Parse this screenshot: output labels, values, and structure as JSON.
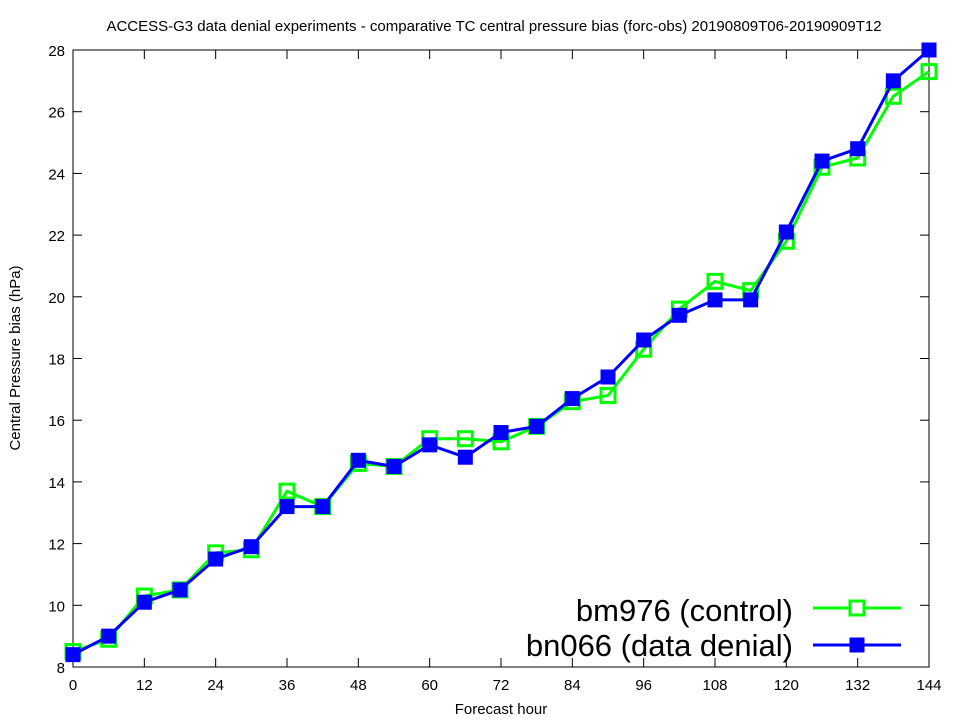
{
  "chart_data": {
    "type": "line",
    "title": "ACCESS-G3 data denial experiments - comparative TC central pressure bias (forc-obs) 20190809T06-20190909T12",
    "xlabel": "Forecast hour",
    "ylabel": "Central Pressure bias (hPa)",
    "xlim": [
      0,
      144
    ],
    "ylim": [
      8,
      28
    ],
    "xticks": [
      0,
      12,
      24,
      36,
      48,
      60,
      72,
      84,
      96,
      108,
      120,
      132,
      144
    ],
    "yticks": [
      8,
      10,
      12,
      14,
      16,
      18,
      20,
      22,
      24,
      26,
      28
    ],
    "grid": false,
    "legend_position": "bottom-right",
    "x": [
      0,
      6,
      12,
      18,
      24,
      30,
      36,
      42,
      48,
      54,
      60,
      66,
      72,
      78,
      84,
      90,
      96,
      102,
      108,
      114,
      120,
      126,
      132,
      138,
      144
    ],
    "series": [
      {
        "name": "bm976 (control)",
        "color": "#00ff00",
        "marker": "open-square",
        "values": [
          8.5,
          8.9,
          10.3,
          10.5,
          11.7,
          11.8,
          13.7,
          13.2,
          14.6,
          14.5,
          15.4,
          15.4,
          15.3,
          15.8,
          16.6,
          16.8,
          18.3,
          19.6,
          20.5,
          20.2,
          21.8,
          24.2,
          24.5,
          26.5,
          27.3
        ]
      },
      {
        "name": "bn066 (data denial)",
        "color": "#0000ff",
        "marker": "filled-square",
        "values": [
          8.4,
          9.0,
          10.1,
          10.5,
          11.5,
          11.9,
          13.2,
          13.2,
          14.7,
          14.5,
          15.2,
          14.8,
          15.6,
          15.8,
          16.7,
          17.4,
          18.6,
          19.4,
          19.9,
          19.9,
          22.1,
          24.4,
          24.8,
          27.0,
          28.0
        ]
      }
    ]
  }
}
